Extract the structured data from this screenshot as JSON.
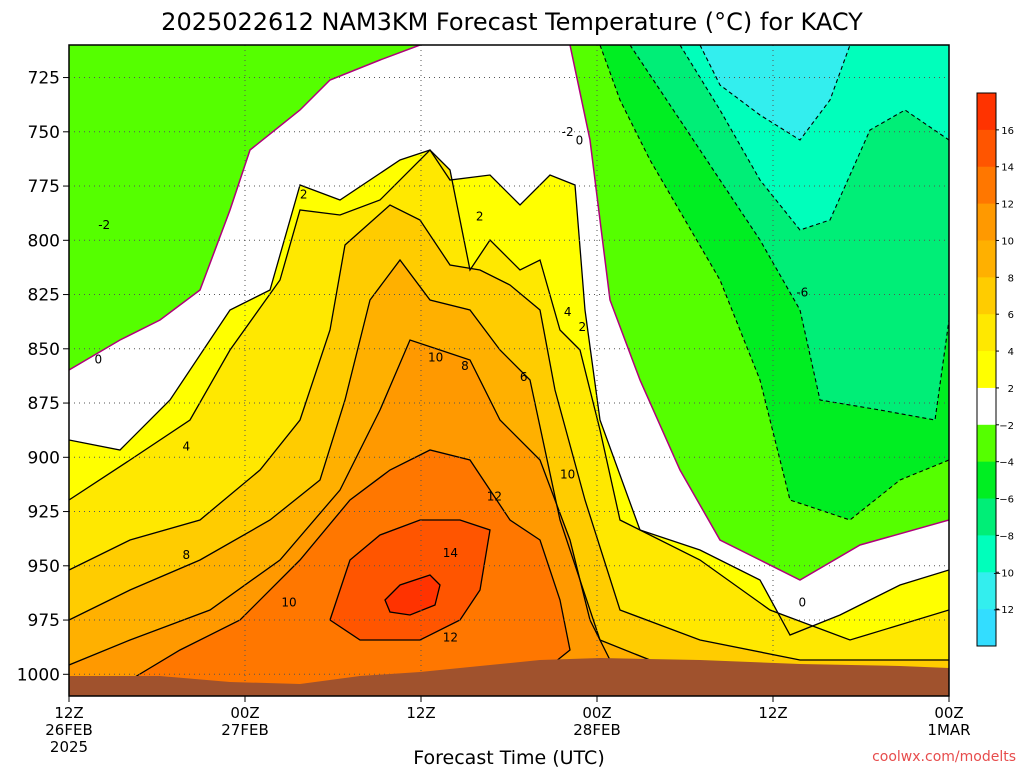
{
  "title": "2025022612 NAM3KM Forecast Temperature (°C) for KACY",
  "credit": "coolwx.com/modelts",
  "chart_data": {
    "type": "heatmap",
    "title": "2025022612 NAM3KM Forecast Temperature (°C) for KACY",
    "xlabel": "Forecast Time (UTC)",
    "ylabel": "",
    "y_axis": {
      "unit": "hPa",
      "range": [
        1010,
        710
      ],
      "ticks": [
        "725",
        "750",
        "775",
        "800",
        "825",
        "850",
        "875",
        "900",
        "925",
        "950",
        "975",
        "1000"
      ]
    },
    "x_axis": {
      "range_hours": [
        0,
        60
      ],
      "ticks": [
        {
          "hour": 0,
          "lines": [
            "12Z",
            "26FEB",
            "2025"
          ]
        },
        {
          "hour": 12,
          "lines": [
            "00Z",
            "27FEB"
          ]
        },
        {
          "hour": 24,
          "lines": [
            "12Z"
          ]
        },
        {
          "hour": 36,
          "lines": [
            "00Z",
            "28FEB"
          ]
        },
        {
          "hour": 48,
          "lines": [
            "12Z"
          ]
        },
        {
          "hour": 60,
          "lines": [
            "00Z",
            "1MAR"
          ]
        }
      ]
    },
    "grid": true,
    "colorbar": {
      "position": "right",
      "labels": [
        "16",
        "14",
        "12",
        "10",
        "8",
        "6",
        "4",
        "2",
        "−2",
        "−4",
        "−6",
        "−8",
        "−10",
        "−12"
      ],
      "colors": [
        "#ff3300",
        "#ff5500",
        "#ff7700",
        "#ff9900",
        "#ffb000",
        "#ffcc00",
        "#ffe800",
        "#ffff00",
        "#ffffff",
        "#55ff00",
        "#00ee22",
        "#00ee77",
        "#00ffbb",
        "#33eeee",
        "#33ddff"
      ]
    },
    "surface_color": "#a0522d",
    "contour_labels": [
      {
        "text": "-2",
        "hour": 2.4,
        "p": 793
      },
      {
        "text": "0",
        "hour": 2.0,
        "p": 855
      },
      {
        "text": "2",
        "hour": 16.0,
        "p": 779
      },
      {
        "text": "4",
        "hour": 8.0,
        "p": 895
      },
      {
        "text": "8",
        "hour": 8.0,
        "p": 945
      },
      {
        "text": "10",
        "hour": 15.0,
        "p": 967
      },
      {
        "text": "10",
        "hour": 25.0,
        "p": 854
      },
      {
        "text": "8",
        "hour": 27.0,
        "p": 858
      },
      {
        "text": "6",
        "hour": 31.0,
        "p": 863
      },
      {
        "text": "2",
        "hour": 28.0,
        "p": 789
      },
      {
        "text": "4",
        "hour": 34.0,
        "p": 833
      },
      {
        "text": "2",
        "hour": 35.0,
        "p": 840
      },
      {
        "text": "-2",
        "hour": 34.0,
        "p": 750
      },
      {
        "text": "0",
        "hour": 34.8,
        "p": 754
      },
      {
        "text": "-6",
        "hour": 50.0,
        "p": 824
      },
      {
        "text": "12",
        "hour": 29.0,
        "p": 918
      },
      {
        "text": "10",
        "hour": 34.0,
        "p": 908
      },
      {
        "text": "14",
        "hour": 26.0,
        "p": 944
      },
      {
        "text": "12",
        "hour": 26.0,
        "p": 983
      },
      {
        "text": "0",
        "hour": 50.0,
        "p": 967
      }
    ]
  }
}
